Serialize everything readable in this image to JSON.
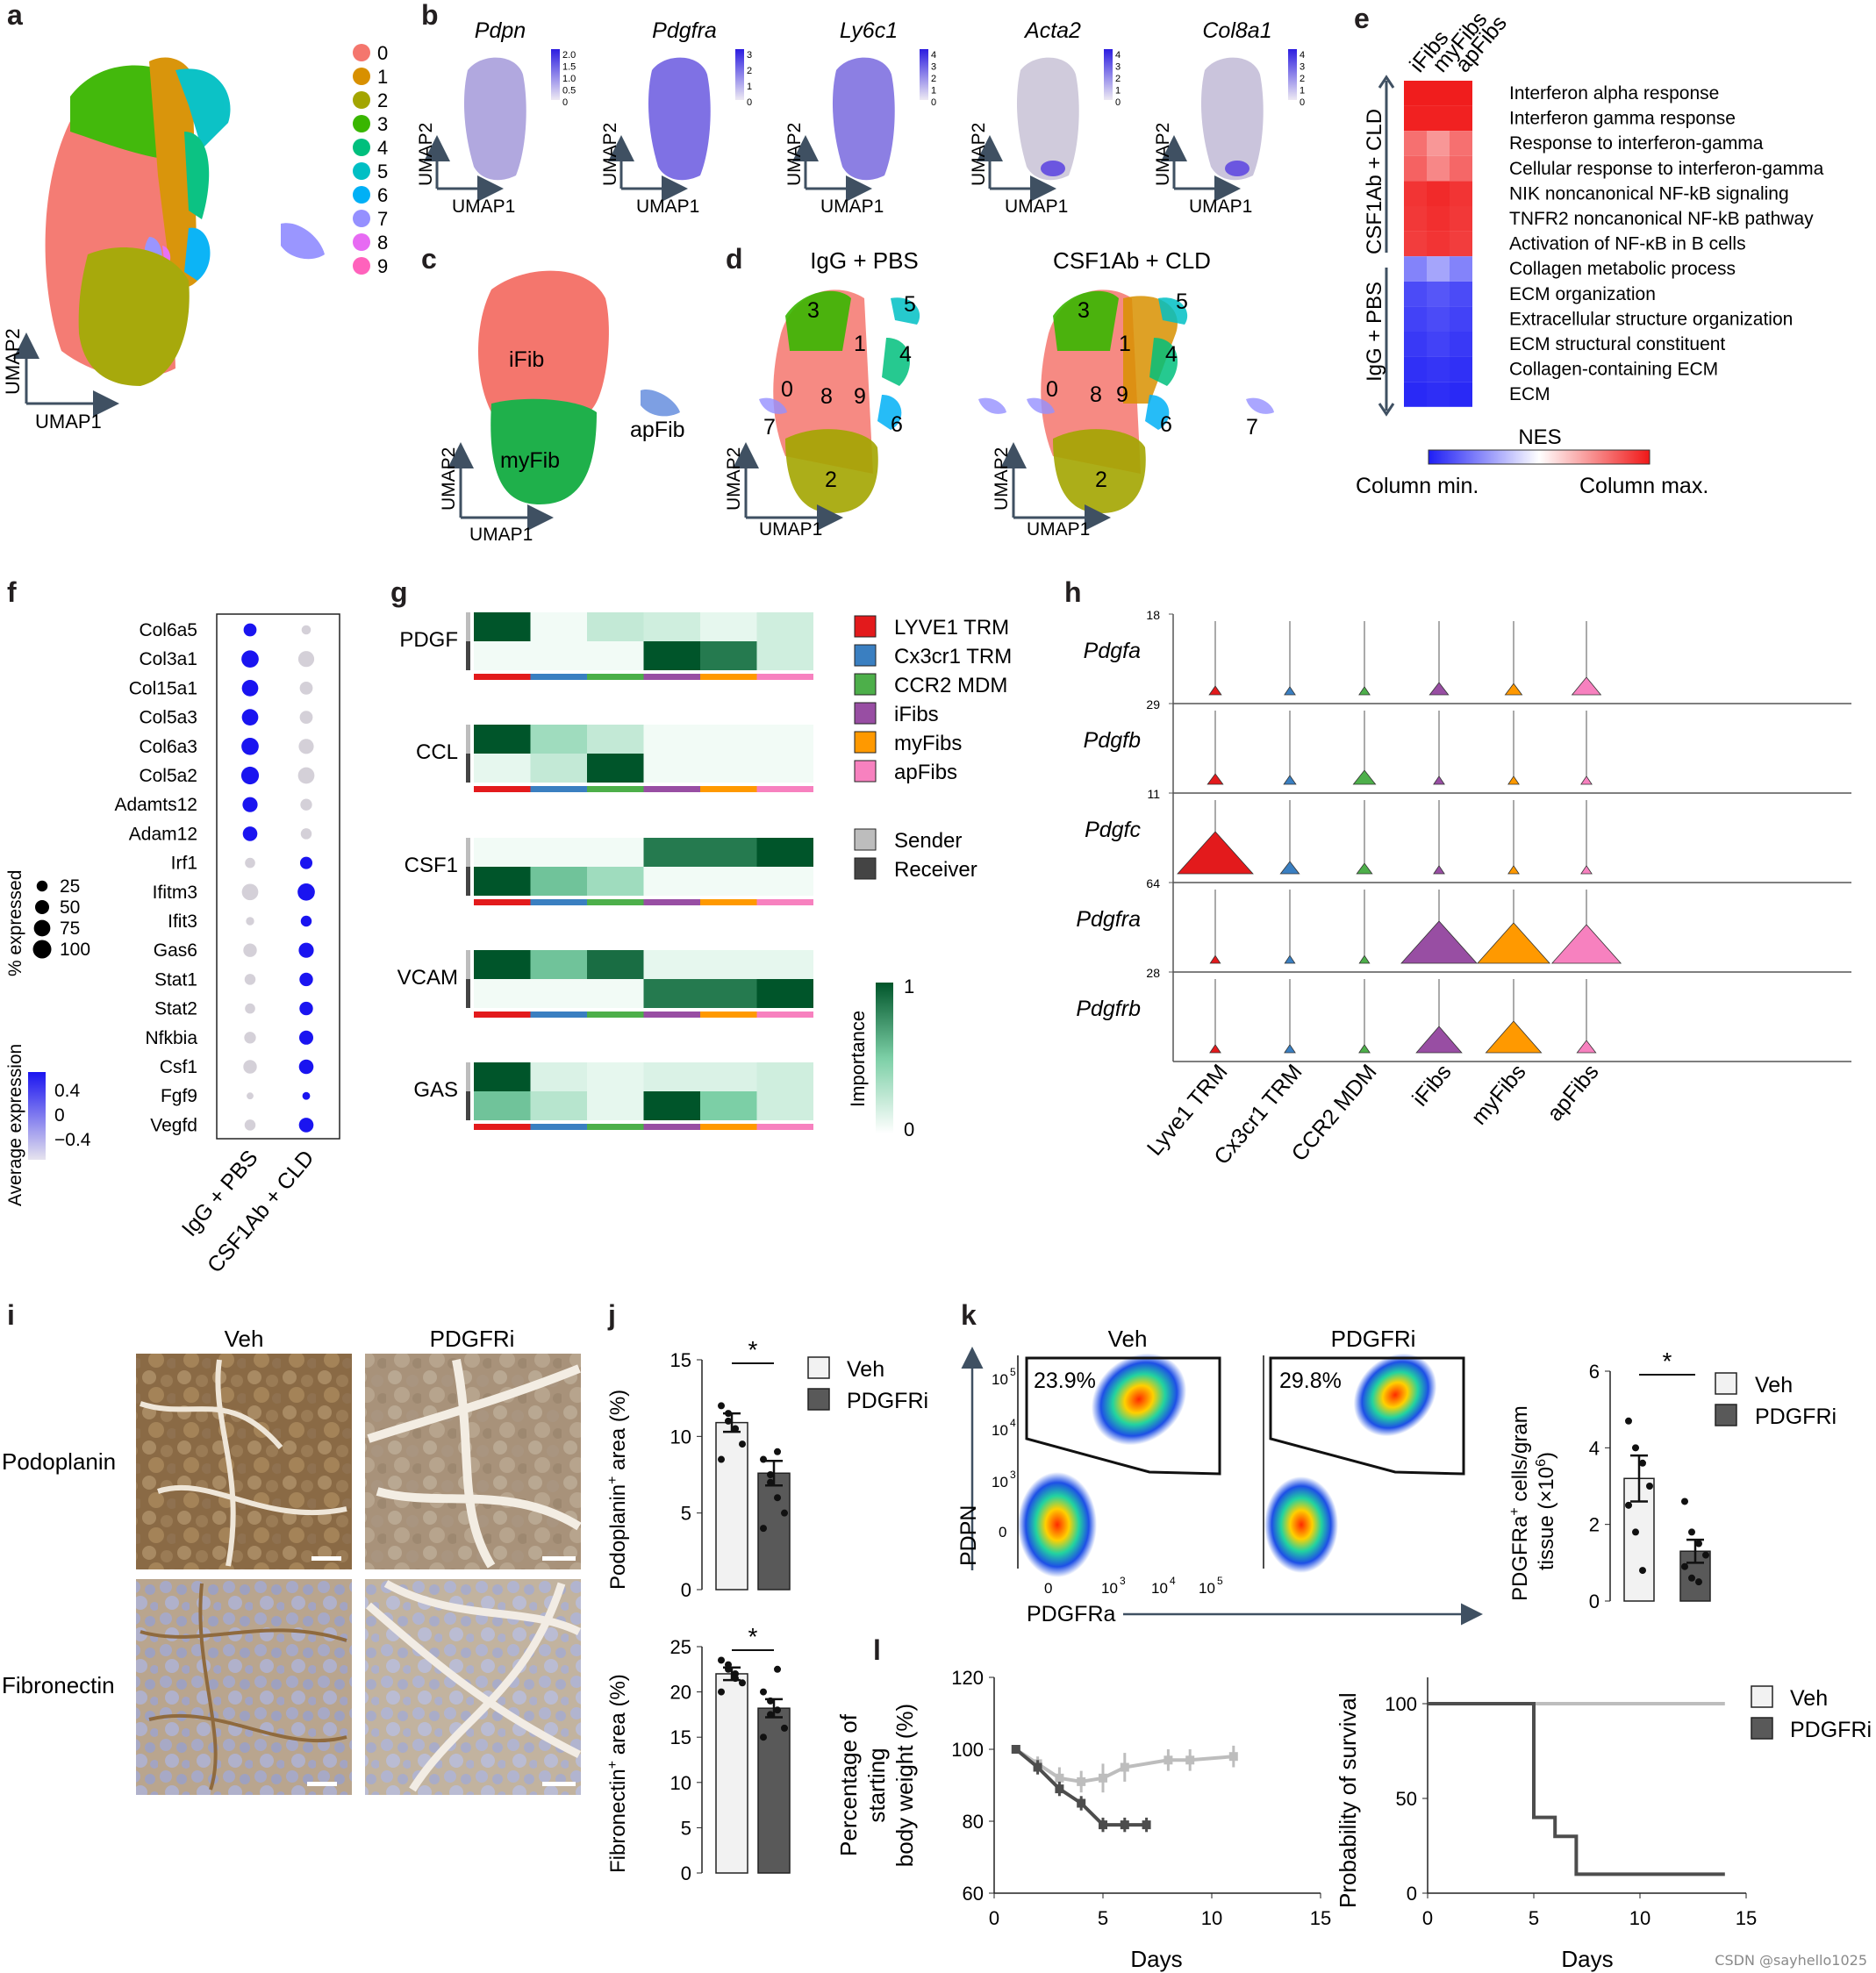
{
  "panel_letters": [
    "a",
    "b",
    "c",
    "d",
    "e",
    "f",
    "g",
    "h",
    "i",
    "j",
    "k",
    "l"
  ],
  "axis_terms": {
    "umap1": "UMAP1",
    "umap2": "UMAP2"
  },
  "panel_a": {
    "clusters": [
      "0",
      "1",
      "2",
      "3",
      "4",
      "5",
      "6",
      "7",
      "8",
      "9"
    ],
    "colors": [
      "#f4766d",
      "#d89000",
      "#a3a500",
      "#39b600",
      "#00bf7d",
      "#00bfc4",
      "#00b0f6",
      "#9590ff",
      "#e76bf3",
      "#ff62bc"
    ]
  },
  "panel_b": {
    "genes": [
      "Pdpn",
      "Pdgfra",
      "Ly6c1",
      "Acta2",
      "Col8a1"
    ],
    "scales": [
      [
        "2.0",
        "1.5",
        "1.0",
        "0.5",
        "0"
      ],
      [
        "3",
        "2",
        "1",
        "0"
      ],
      [
        "4",
        "3",
        "2",
        "1",
        "0"
      ],
      [
        "4",
        "3",
        "2",
        "1",
        "0"
      ],
      [
        "4",
        "3",
        "2",
        "1",
        "0"
      ]
    ]
  },
  "panel_c": {
    "labels": [
      "iFib",
      "myFib",
      "apFib"
    ]
  },
  "panel_d": {
    "titles": [
      "IgG + PBS",
      "CSF1Ab + CLD"
    ],
    "cluster_numbers": [
      "0",
      "1",
      "2",
      "3",
      "4",
      "5",
      "6",
      "7",
      "8",
      "9"
    ]
  },
  "panel_e": {
    "columns": [
      "iFibs",
      "myFibs",
      "apFibs"
    ],
    "groups": [
      "CSF1Ab + CLD",
      "IgG + PBS"
    ],
    "rows": [
      "Interferon alpha response",
      "Interferon gamma response",
      "Response to interferon-gamma",
      "Cellular response to interferon-gamma",
      "NIK noncanonical NF-kB signaling",
      "TNFR2 noncanonical NF-kB pathway",
      "Activation of NF-κB in B cells",
      "Collagen metabolic process",
      "ECM organization",
      "Extracellular structure organization",
      "ECM structural constituent",
      "Collagen-containing ECM",
      "ECM"
    ],
    "nes_label": "NES",
    "min_label": "Column min.",
    "max_label": "Column max.",
    "nes_values": [
      [
        0.98,
        0.98,
        0.98
      ],
      [
        0.96,
        0.96,
        0.96
      ],
      [
        0.62,
        0.45,
        0.62
      ],
      [
        0.68,
        0.52,
        0.66
      ],
      [
        0.88,
        0.92,
        0.88
      ],
      [
        0.86,
        0.9,
        0.86
      ],
      [
        0.84,
        0.88,
        0.84
      ],
      [
        -0.55,
        -0.4,
        -0.55
      ],
      [
        -0.8,
        -0.75,
        -0.8
      ],
      [
        -0.84,
        -0.8,
        -0.84
      ],
      [
        -0.88,
        -0.84,
        -0.88
      ],
      [
        -0.92,
        -0.9,
        -0.92
      ],
      [
        -0.95,
        -0.93,
        -0.95
      ]
    ]
  },
  "panel_f": {
    "genes": [
      "Col6a5",
      "Col3a1",
      "Col15a1",
      "Col5a3",
      "Col6a3",
      "Col5a2",
      "Adamts12",
      "Adam12",
      "Irf1",
      "Ifitm3",
      "Ifit3",
      "Gas6",
      "Stat1",
      "Stat2",
      "Nfkbia",
      "Csf1",
      "Fgf9",
      "Vegfd"
    ],
    "conditions": [
      "IgG + PBS",
      "CSF1Ab + CLD"
    ],
    "pct_label": "% expressed",
    "pct_values": [
      "25",
      "50",
      "75",
      "100"
    ],
    "avg_label": "Average expression",
    "avg_ticks": [
      "0.4",
      "0",
      "−0.4"
    ],
    "pct_data": [
      [
        40,
        15
      ],
      [
        85,
        70
      ],
      [
        75,
        40
      ],
      [
        75,
        40
      ],
      [
        85,
        60
      ],
      [
        90,
        75
      ],
      [
        60,
        30
      ],
      [
        55,
        25
      ],
      [
        20,
        35
      ],
      [
        75,
        85
      ],
      [
        10,
        25
      ],
      [
        45,
        60
      ],
      [
        25,
        45
      ],
      [
        20,
        45
      ],
      [
        30,
        50
      ],
      [
        45,
        55
      ],
      [
        5,
        8
      ],
      [
        25,
        55
      ]
    ],
    "avg_data": [
      [
        0.5,
        -0.4
      ],
      [
        0.5,
        -0.4
      ],
      [
        0.5,
        -0.4
      ],
      [
        0.5,
        -0.4
      ],
      [
        0.5,
        -0.4
      ],
      [
        0.5,
        -0.4
      ],
      [
        0.5,
        -0.4
      ],
      [
        0.5,
        -0.4
      ],
      [
        -0.4,
        0.5
      ],
      [
        -0.4,
        0.5
      ],
      [
        -0.4,
        0.5
      ],
      [
        -0.4,
        0.5
      ],
      [
        -0.4,
        0.5
      ],
      [
        -0.4,
        0.5
      ],
      [
        -0.4,
        0.5
      ],
      [
        -0.4,
        0.5
      ],
      [
        -0.4,
        0.5
      ],
      [
        -0.4,
        0.5
      ]
    ]
  },
  "panel_g": {
    "pathways": [
      "PDGF",
      "CCL",
      "CSF1",
      "VCAM",
      "GAS"
    ],
    "cell_types": [
      "LYVE1 TRM",
      "Cx3cr1 TRM",
      "CCR2 MDM",
      "iFibs",
      "myFibs",
      "apFibs"
    ],
    "cell_colors": [
      "#e31a1c",
      "#3a7fc1",
      "#4daf4a",
      "#984ea3",
      "#ff9900",
      "#f781bf"
    ],
    "role_labels": [
      "Sender",
      "Receiver"
    ],
    "role_colors": [
      "#bdbdbd",
      "#444444"
    ],
    "importance_label": "Importance",
    "importance_ticks": [
      "1",
      "0"
    ],
    "values": [
      [
        [
          1.0,
          0.0,
          0.2,
          0.15,
          0.05,
          0.15
        ],
        [
          0.0,
          0.0,
          0.0,
          1.0,
          0.85,
          0.15
        ]
      ],
      [
        [
          1.0,
          0.35,
          0.2,
          0,
          0,
          0
        ],
        [
          0.05,
          0.2,
          1.0,
          0,
          0,
          0
        ]
      ],
      [
        [
          0,
          0,
          0,
          0.85,
          0.85,
          1.0
        ],
        [
          1.0,
          0.55,
          0.35,
          0,
          0,
          0
        ]
      ],
      [
        [
          1.0,
          0.55,
          0.9,
          0.05,
          0.05,
          0.05
        ],
        [
          0,
          0,
          0,
          0.85,
          0.85,
          1.0
        ]
      ],
      [
        [
          1.0,
          0.1,
          0.05,
          0.1,
          0.1,
          0.15
        ],
        [
          0.55,
          0.25,
          0.05,
          1.0,
          0.5,
          0.15
        ]
      ]
    ]
  },
  "panel_h": {
    "genes": [
      "Pdgfa",
      "Pdgfb",
      "Pdgfc",
      "Pdgfra",
      "Pdgfrb"
    ],
    "maxima": [
      "18",
      "29",
      "11",
      "64",
      "28"
    ],
    "cell_types": [
      "Lyve1 TRM",
      "Cx3cr1 TRM",
      "CCR2 MDM",
      "iFibs",
      "myFibs",
      "apFibs"
    ],
    "widths": [
      [
        0.05,
        0.03,
        0.03,
        0.15,
        0.12,
        0.3
      ],
      [
        0.1,
        0.05,
        0.2,
        0.03,
        0.03,
        0.03
      ],
      [
        1.0,
        0.15,
        0.1,
        0.03,
        0.03,
        0.03
      ],
      [
        0.02,
        0.02,
        0.02,
        1.0,
        0.95,
        0.9
      ],
      [
        0.03,
        0.03,
        0.03,
        0.55,
        0.7,
        0.15
      ]
    ]
  },
  "panel_i": {
    "columns": [
      "Veh",
      "PDGFRi"
    ],
    "rows": [
      "Podoplanin",
      "Fibronectin"
    ]
  },
  "panel_j": {
    "significance": "*",
    "legend": [
      "Veh",
      "PDGFRi"
    ],
    "charts": [
      {
        "type": "bar",
        "ylabel": "Podoplanin+ area (%)",
        "ylabel_main": "Podoplanin",
        "ylabel_sup": "+",
        "ylabel_rest": " area (%)",
        "ylim": [
          0,
          15
        ],
        "ticks": [
          "0",
          "5",
          "10",
          "15"
        ],
        "tick_values": [
          0,
          5,
          10,
          15
        ],
        "means": [
          10.9,
          7.6
        ],
        "sem": [
          0.6,
          0.8
        ],
        "points": [
          [
            12,
            11,
            10.5,
            9.5,
            8.5,
            11.5,
            10.5
          ],
          [
            8.5,
            7,
            6,
            5,
            4,
            7.5,
            9
          ]
        ]
      },
      {
        "type": "bar",
        "ylabel": "Fibronectin+ area (%)",
        "ylabel_main": "Fibronectin",
        "ylabel_sup": "+",
        "ylabel_rest": " area (%)",
        "ylim": [
          0,
          25
        ],
        "ticks": [
          "0",
          "5",
          "10",
          "15",
          "20",
          "25"
        ],
        "tick_values": [
          0,
          5,
          10,
          15,
          20,
          25
        ],
        "means": [
          22,
          18.2
        ],
        "sem": [
          0.7,
          1.0
        ],
        "points": [
          [
            23.5,
            22.5,
            22,
            21,
            20,
            23,
            21.5
          ],
          [
            20,
            19,
            18,
            16,
            15,
            17.5,
            22.5
          ]
        ]
      }
    ]
  },
  "panel_k": {
    "titles": [
      "Veh",
      "PDGFRi"
    ],
    "gates": [
      "23.9%",
      "29.8%"
    ],
    "yaxis": "PDPN",
    "xaxis": "PDGFRa",
    "ticks": [
      "0",
      "10",
      "3",
      "10",
      "4",
      "10",
      "5"
    ],
    "chart_data": {
      "type": "bar",
      "ylabel_main": "PDGFRa",
      "ylabel_sup": "+",
      "ylabel_rest": " cells/gram",
      "ylabel2_main": "tissue (×10",
      "ylabel2_sup": "6",
      "ylabel2_end": ")",
      "ylim": [
        0,
        6
      ],
      "ticks": [
        "0",
        "2",
        "4",
        "6"
      ],
      "tick_values": [
        0,
        2,
        4,
        6
      ],
      "means": [
        3.2,
        1.3
      ],
      "sem": [
        0.6,
        0.3
      ],
      "points": [
        [
          4.7,
          4.0,
          3.6,
          3.0,
          2.5,
          1.8,
          0.8
        ],
        [
          2.6,
          1.8,
          1.5,
          1.2,
          0.9,
          0.6,
          0.5
        ]
      ],
      "significance": "*",
      "legend": [
        "Veh",
        "PDGFRi"
      ]
    }
  },
  "panel_l": {
    "weight": {
      "type": "line",
      "ylabel": [
        "Percentage of",
        "starting",
        "body weight (%)"
      ],
      "xlabel": "Days",
      "ylim": [
        60,
        120
      ],
      "xlim": [
        0,
        15
      ],
      "yticks": [
        "60",
        "80",
        "100",
        "120"
      ],
      "ytick_values": [
        60,
        80,
        100,
        120
      ],
      "xticks": [
        "0",
        "5",
        "10",
        "15"
      ],
      "xtick_values": [
        0,
        5,
        10,
        15
      ],
      "series": [
        {
          "name": "Veh",
          "x": [
            1,
            2,
            3,
            4,
            5,
            6,
            8,
            9,
            11
          ],
          "y": [
            100,
            96,
            92,
            91,
            92,
            95,
            97,
            97,
            98
          ],
          "err": [
            1,
            2,
            3,
            3,
            4,
            4,
            3,
            3,
            3
          ]
        },
        {
          "name": "PDGFRi",
          "x": [
            1,
            2,
            3,
            4,
            5,
            6,
            7
          ],
          "y": [
            100,
            95,
            89,
            85,
            79,
            79,
            79
          ],
          "err": [
            1,
            2,
            2,
            2,
            2,
            2,
            2
          ]
        }
      ]
    },
    "survival": {
      "type": "line",
      "ylabel": "Probability of survival",
      "xlabel": "Days",
      "ylim": [
        0,
        100
      ],
      "xlim": [
        0,
        15
      ],
      "yticks": [
        "0",
        "50",
        "100"
      ],
      "ytick_values": [
        0,
        50,
        100
      ],
      "xticks": [
        "0",
        "5",
        "10",
        "15"
      ],
      "xtick_values": [
        0,
        5,
        10,
        15
      ],
      "series": [
        {
          "name": "Veh",
          "steps": [
            [
              0,
              100
            ],
            [
              14,
              100
            ]
          ]
        },
        {
          "name": "PDGFRi",
          "steps": [
            [
              0,
              100
            ],
            [
              5,
              100
            ],
            [
              5,
              40
            ],
            [
              6,
              40
            ],
            [
              6,
              30
            ],
            [
              7,
              30
            ],
            [
              7,
              10
            ],
            [
              14,
              10
            ]
          ]
        }
      ],
      "legend": [
        "Veh",
        "PDGFRi"
      ]
    }
  },
  "watermark": "CSDN @sayhello1025"
}
